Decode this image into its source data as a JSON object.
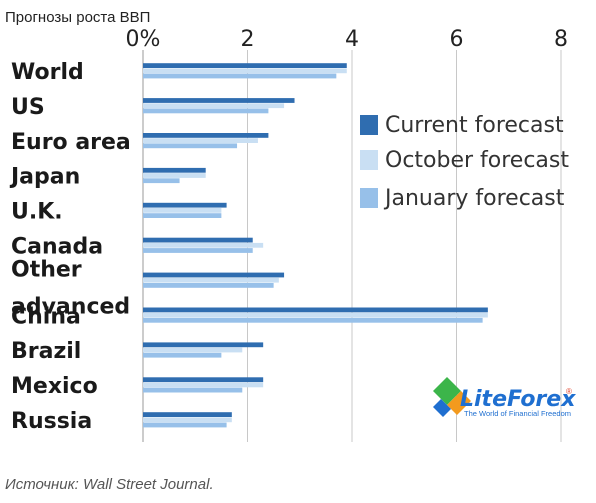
{
  "caption": "Прогнозы роста ВВП",
  "source": "Источник: Wall Street Journal.",
  "logo": {
    "name": "LiteForex",
    "registered": "®",
    "tagline": "The World of Financial Freedom"
  },
  "colors": {
    "current": "#2f6db0",
    "october": "#c9dff3",
    "january": "#97c0e9",
    "grid": "#c8c8c8"
  },
  "chart_data": {
    "type": "bar",
    "orientation": "horizontal",
    "categories": [
      "World",
      "US",
      "Euro area",
      "Japan",
      "U.K.",
      "Canada",
      "Other advanced",
      "China",
      "Brazil",
      "Mexico",
      "Russia"
    ],
    "category_display": [
      "World",
      "US",
      "Euro area",
      "Japan",
      "U.K.",
      "Canada",
      "Other\nadvanced",
      "China",
      "Brazil",
      "Mexico",
      "Russia"
    ],
    "series": [
      {
        "name": "Current forecast",
        "values": [
          3.9,
          2.9,
          2.4,
          1.2,
          1.6,
          2.1,
          2.7,
          6.6,
          2.3,
          2.3,
          1.7
        ]
      },
      {
        "name": "October forecast",
        "values": [
          3.9,
          2.7,
          2.2,
          1.2,
          1.5,
          2.3,
          2.6,
          6.6,
          1.9,
          2.3,
          1.7
        ]
      },
      {
        "name": "January forecast",
        "values": [
          3.7,
          2.4,
          1.8,
          0.7,
          1.5,
          2.1,
          2.5,
          6.5,
          1.5,
          1.9,
          1.6
        ]
      }
    ],
    "x_ticks": [
      "0%",
      "2",
      "4",
      "6",
      "8"
    ],
    "xlim": [
      0,
      8
    ],
    "grid": true,
    "legend_position": "right"
  }
}
